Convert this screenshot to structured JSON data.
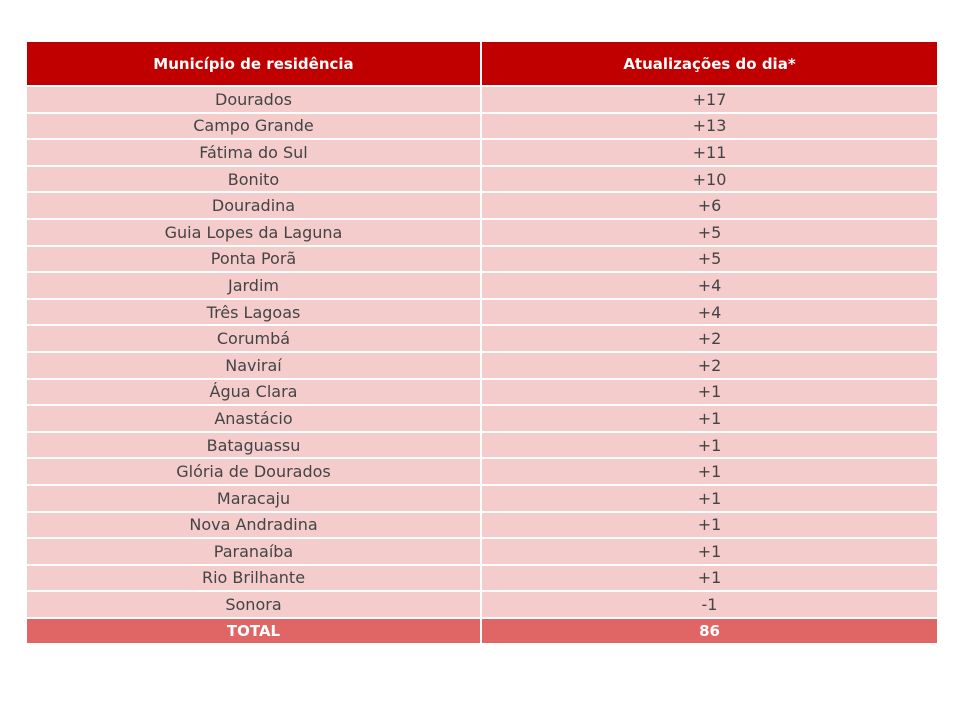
{
  "table": {
    "headers": [
      "Município de residência",
      "Atualizações do dia*"
    ],
    "rows": [
      {
        "municipio": "Dourados",
        "atualizacao": "+17"
      },
      {
        "municipio": "Campo Grande",
        "atualizacao": "+13"
      },
      {
        "municipio": "Fátima do Sul",
        "atualizacao": "+11"
      },
      {
        "municipio": "Bonito",
        "atualizacao": "+10"
      },
      {
        "municipio": "Douradina",
        "atualizacao": "+6"
      },
      {
        "municipio": "Guia Lopes da Laguna",
        "atualizacao": "+5"
      },
      {
        "municipio": "Ponta Porã",
        "atualizacao": "+5"
      },
      {
        "municipio": "Jardim",
        "atualizacao": "+4"
      },
      {
        "municipio": "Três Lagoas",
        "atualizacao": "+4"
      },
      {
        "municipio": "Corumbá",
        "atualizacao": "+2"
      },
      {
        "municipio": "Naviraí",
        "atualizacao": "+2"
      },
      {
        "municipio": "Água Clara",
        "atualizacao": "+1"
      },
      {
        "municipio": "Anastácio",
        "atualizacao": "+1"
      },
      {
        "municipio": "Bataguassu",
        "atualizacao": "+1"
      },
      {
        "municipio": "Glória de Dourados",
        "atualizacao": "+1"
      },
      {
        "municipio": "Maracaju",
        "atualizacao": "+1"
      },
      {
        "municipio": "Nova Andradina",
        "atualizacao": "+1"
      },
      {
        "municipio": "Paranaíba",
        "atualizacao": "+1"
      },
      {
        "municipio": "Rio Brilhante",
        "atualizacao": "+1"
      },
      {
        "municipio": "Sonora",
        "atualizacao": "-1"
      }
    ],
    "total": {
      "label": "TOTAL",
      "value": "86"
    }
  },
  "colors": {
    "header_bg": "#c00000",
    "row_bg": "#f4cccc",
    "total_bg": "#e06666"
  }
}
